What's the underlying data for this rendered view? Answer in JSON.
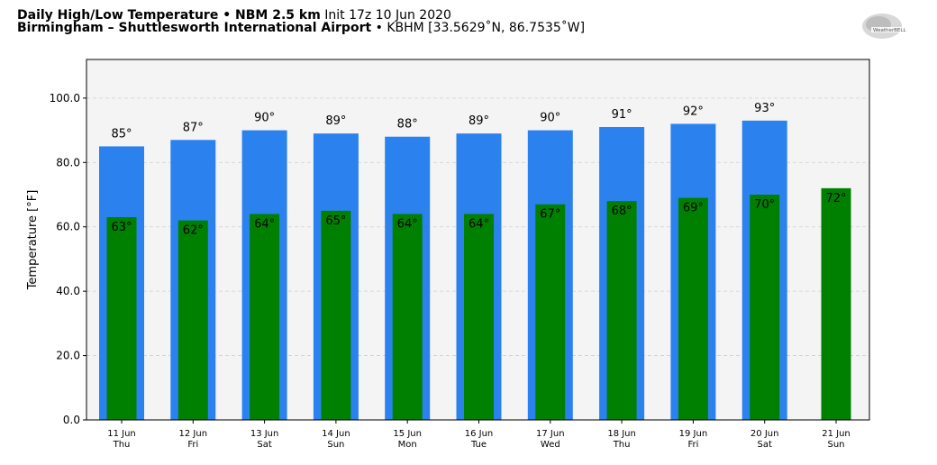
{
  "header": {
    "title_bold": "Daily High/Low Temperature • NBM 2.5 km",
    "title_init": "Init 17z 10 Jun 2020",
    "location_bold": "Birmingham – Shuttlesworth International Airport",
    "location_rest": "• KBHM [33.5629˚N, 86.7535˚W]",
    "logo_text": "WeatherBELL"
  },
  "chart_data": {
    "type": "bar",
    "ylabel": "Temperature [°F]",
    "ylim": [
      0,
      112
    ],
    "yticks": [
      "0.0",
      "20.0",
      "40.0",
      "60.0",
      "80.0",
      "100.0"
    ],
    "ytick_values": [
      0,
      20,
      40,
      60,
      80,
      100
    ],
    "grid": true,
    "categories": [
      {
        "date": "11 Jun",
        "day": "Thu"
      },
      {
        "date": "12 Jun",
        "day": "Fri"
      },
      {
        "date": "13 Jun",
        "day": "Sat"
      },
      {
        "date": "14 Jun",
        "day": "Sun"
      },
      {
        "date": "15 Jun",
        "day": "Mon"
      },
      {
        "date": "16 Jun",
        "day": "Tue"
      },
      {
        "date": "17 Jun",
        "day": "Wed"
      },
      {
        "date": "18 Jun",
        "day": "Thu"
      },
      {
        "date": "19 Jun",
        "day": "Fri"
      },
      {
        "date": "20 Jun",
        "day": "Sat"
      },
      {
        "date": "21 Jun",
        "day": "Sun"
      }
    ],
    "series": [
      {
        "values": [
          85,
          87,
          90,
          89,
          88,
          89,
          90,
          91,
          92,
          93,
          null
        ],
        "labels": [
          "85°",
          "87°",
          "90°",
          "89°",
          "88°",
          "89°",
          "90°",
          "91°",
          "92°",
          "93°",
          ""
        ],
        "color": "#2b82ee"
      },
      {
        "values": [
          63,
          62,
          64,
          65,
          64,
          64,
          67,
          68,
          69,
          70,
          72
        ],
        "labels": [
          "63°",
          "62°",
          "64°",
          "65°",
          "64°",
          "64°",
          "67°",
          "68°",
          "69°",
          "70°",
          "72°"
        ],
        "color": "#008000"
      }
    ]
  }
}
